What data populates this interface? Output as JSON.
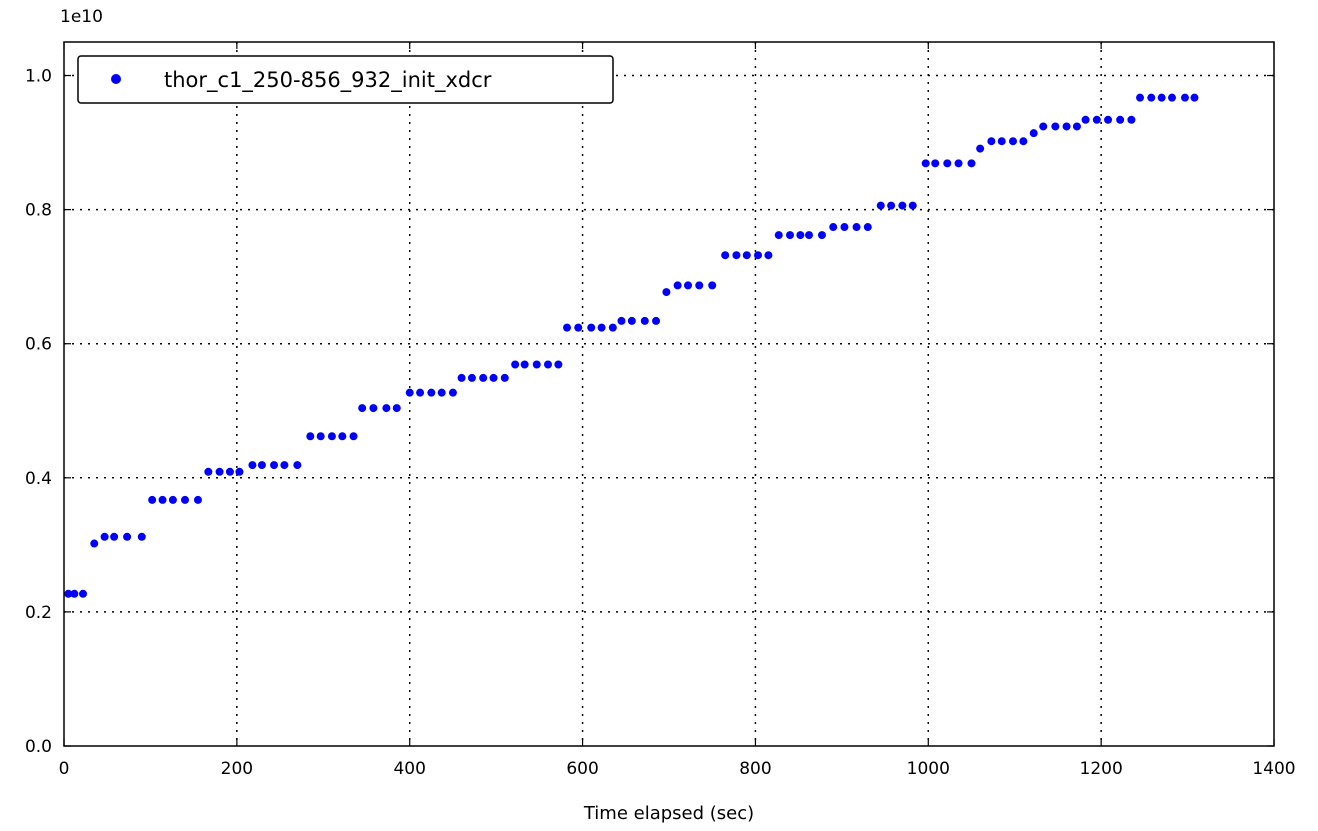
{
  "chart_data": {
    "type": "scatter",
    "title": "",
    "xlabel": "Time elapsed (sec)",
    "ylabel": "",
    "y_offset_label": "1e10",
    "xlim": [
      0,
      1400
    ],
    "ylim": [
      0,
      1.05
    ],
    "x_ticks": [
      0,
      200,
      400,
      600,
      800,
      1000,
      1200,
      1400
    ],
    "x_tick_labels": [
      "0",
      "200",
      "400",
      "600",
      "800",
      "1000",
      "1200",
      "1400"
    ],
    "y_ticks": [
      0,
      0.2,
      0.4,
      0.6,
      0.8,
      1.0
    ],
    "y_tick_labels": [
      "0.0",
      "0.2",
      "0.4",
      "0.6",
      "0.8",
      "1.0"
    ],
    "grid": true,
    "legend_position": "top-left",
    "series": [
      {
        "name": "thor_c1_250-856_932_init_xdcr",
        "color": "#0000ff",
        "points": [
          [
            5,
            0.227
          ],
          [
            12,
            0.227
          ],
          [
            22,
            0.227
          ],
          [
            35,
            0.302
          ],
          [
            47,
            0.312
          ],
          [
            58,
            0.312
          ],
          [
            73,
            0.312
          ],
          [
            90,
            0.312
          ],
          [
            102,
            0.367
          ],
          [
            114,
            0.367
          ],
          [
            126,
            0.367
          ],
          [
            140,
            0.367
          ],
          [
            155,
            0.367
          ],
          [
            167,
            0.409
          ],
          [
            180,
            0.409
          ],
          [
            192,
            0.409
          ],
          [
            203,
            0.409
          ],
          [
            218,
            0.419
          ],
          [
            229,
            0.419
          ],
          [
            243,
            0.419
          ],
          [
            255,
            0.419
          ],
          [
            270,
            0.419
          ],
          [
            285,
            0.462
          ],
          [
            297,
            0.462
          ],
          [
            310,
            0.462
          ],
          [
            322,
            0.462
          ],
          [
            335,
            0.462
          ],
          [
            345,
            0.504
          ],
          [
            358,
            0.504
          ],
          [
            373,
            0.504
          ],
          [
            385,
            0.504
          ],
          [
            400,
            0.527
          ],
          [
            412,
            0.527
          ],
          [
            425,
            0.527
          ],
          [
            437,
            0.527
          ],
          [
            450,
            0.527
          ],
          [
            460,
            0.549
          ],
          [
            472,
            0.549
          ],
          [
            485,
            0.549
          ],
          [
            497,
            0.549
          ],
          [
            510,
            0.549
          ],
          [
            522,
            0.569
          ],
          [
            533,
            0.569
          ],
          [
            547,
            0.569
          ],
          [
            560,
            0.569
          ],
          [
            572,
            0.569
          ],
          [
            582,
            0.624
          ],
          [
            595,
            0.624
          ],
          [
            610,
            0.624
          ],
          [
            622,
            0.624
          ],
          [
            635,
            0.624
          ],
          [
            645,
            0.634
          ],
          [
            657,
            0.634
          ],
          [
            672,
            0.634
          ],
          [
            685,
            0.634
          ],
          [
            697,
            0.677
          ],
          [
            710,
            0.687
          ],
          [
            722,
            0.687
          ],
          [
            735,
            0.687
          ],
          [
            750,
            0.687
          ],
          [
            765,
            0.732
          ],
          [
            778,
            0.732
          ],
          [
            790,
            0.732
          ],
          [
            803,
            0.732
          ],
          [
            815,
            0.732
          ],
          [
            827,
            0.762
          ],
          [
            840,
            0.762
          ],
          [
            852,
            0.762
          ],
          [
            862,
            0.762
          ],
          [
            877,
            0.762
          ],
          [
            890,
            0.774
          ],
          [
            903,
            0.774
          ],
          [
            917,
            0.774
          ],
          [
            930,
            0.774
          ],
          [
            945,
            0.806
          ],
          [
            957,
            0.806
          ],
          [
            970,
            0.806
          ],
          [
            982,
            0.806
          ],
          [
            997,
            0.869
          ],
          [
            1008,
            0.869
          ],
          [
            1022,
            0.869
          ],
          [
            1035,
            0.869
          ],
          [
            1050,
            0.869
          ],
          [
            1060,
            0.891
          ],
          [
            1073,
            0.902
          ],
          [
            1085,
            0.902
          ],
          [
            1098,
            0.902
          ],
          [
            1110,
            0.902
          ],
          [
            1122,
            0.914
          ],
          [
            1133,
            0.924
          ],
          [
            1147,
            0.924
          ],
          [
            1160,
            0.924
          ],
          [
            1172,
            0.924
          ],
          [
            1182,
            0.934
          ],
          [
            1195,
            0.934
          ],
          [
            1208,
            0.934
          ],
          [
            1222,
            0.934
          ],
          [
            1235,
            0.934
          ],
          [
            1245,
            0.967
          ],
          [
            1258,
            0.967
          ],
          [
            1270,
            0.967
          ],
          [
            1282,
            0.967
          ],
          [
            1297,
            0.967
          ],
          [
            1308,
            0.967
          ]
        ]
      }
    ]
  }
}
